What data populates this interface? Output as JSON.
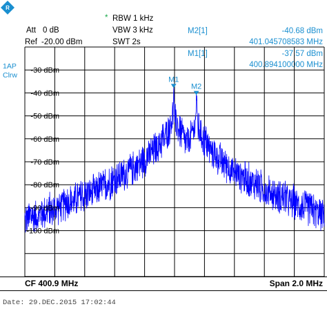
{
  "header": {
    "att_label": "Att",
    "att_value": "0 dB",
    "ref_label": "Ref",
    "ref_value": "-20.00 dBm",
    "rbw_marker": "*",
    "rbw": "RBW 1 kHz",
    "vbw": "VBW 3 kHz",
    "swt": "SWT 2s"
  },
  "markers_readout": [
    {
      "name": "M2[1]",
      "level": "-40.68 dBm",
      "freq": "401.045708583 MHz"
    },
    {
      "name": "M1[1]",
      "level": "-37.57 dBm",
      "freq": "400.894100000 MHz"
    }
  ],
  "side": {
    "trace": "1AP",
    "mode": "Clrw"
  },
  "footer": {
    "cf": "CF 400.9 MHz",
    "span": "Span 2.0 MHz"
  },
  "datetime": "Date: 29.DEC.2015  17:02:44",
  "colors": {
    "trace": "#0000ff",
    "accent": "#1a8fd0",
    "star": "#18a84a"
  },
  "chart_data": {
    "type": "line",
    "y_ticks": [
      "-30 dBm",
      "-40 dBm",
      "-50 dBm",
      "-60 dBm",
      "-70 dBm",
      "-80 dBm",
      "-90 dBm",
      "-100 dBm"
    ],
    "ylim": [
      -120,
      -20
    ],
    "xlim": [
      399.9,
      401.9
    ],
    "grid": true,
    "noise_floor": -107,
    "peaks": [
      {
        "label": "M1",
        "freq": 400.8941,
        "level": -37.57
      },
      {
        "label": "M2",
        "freq": 401.0457,
        "level": -40.68
      }
    ],
    "series": [
      {
        "values": []
      }
    ]
  }
}
